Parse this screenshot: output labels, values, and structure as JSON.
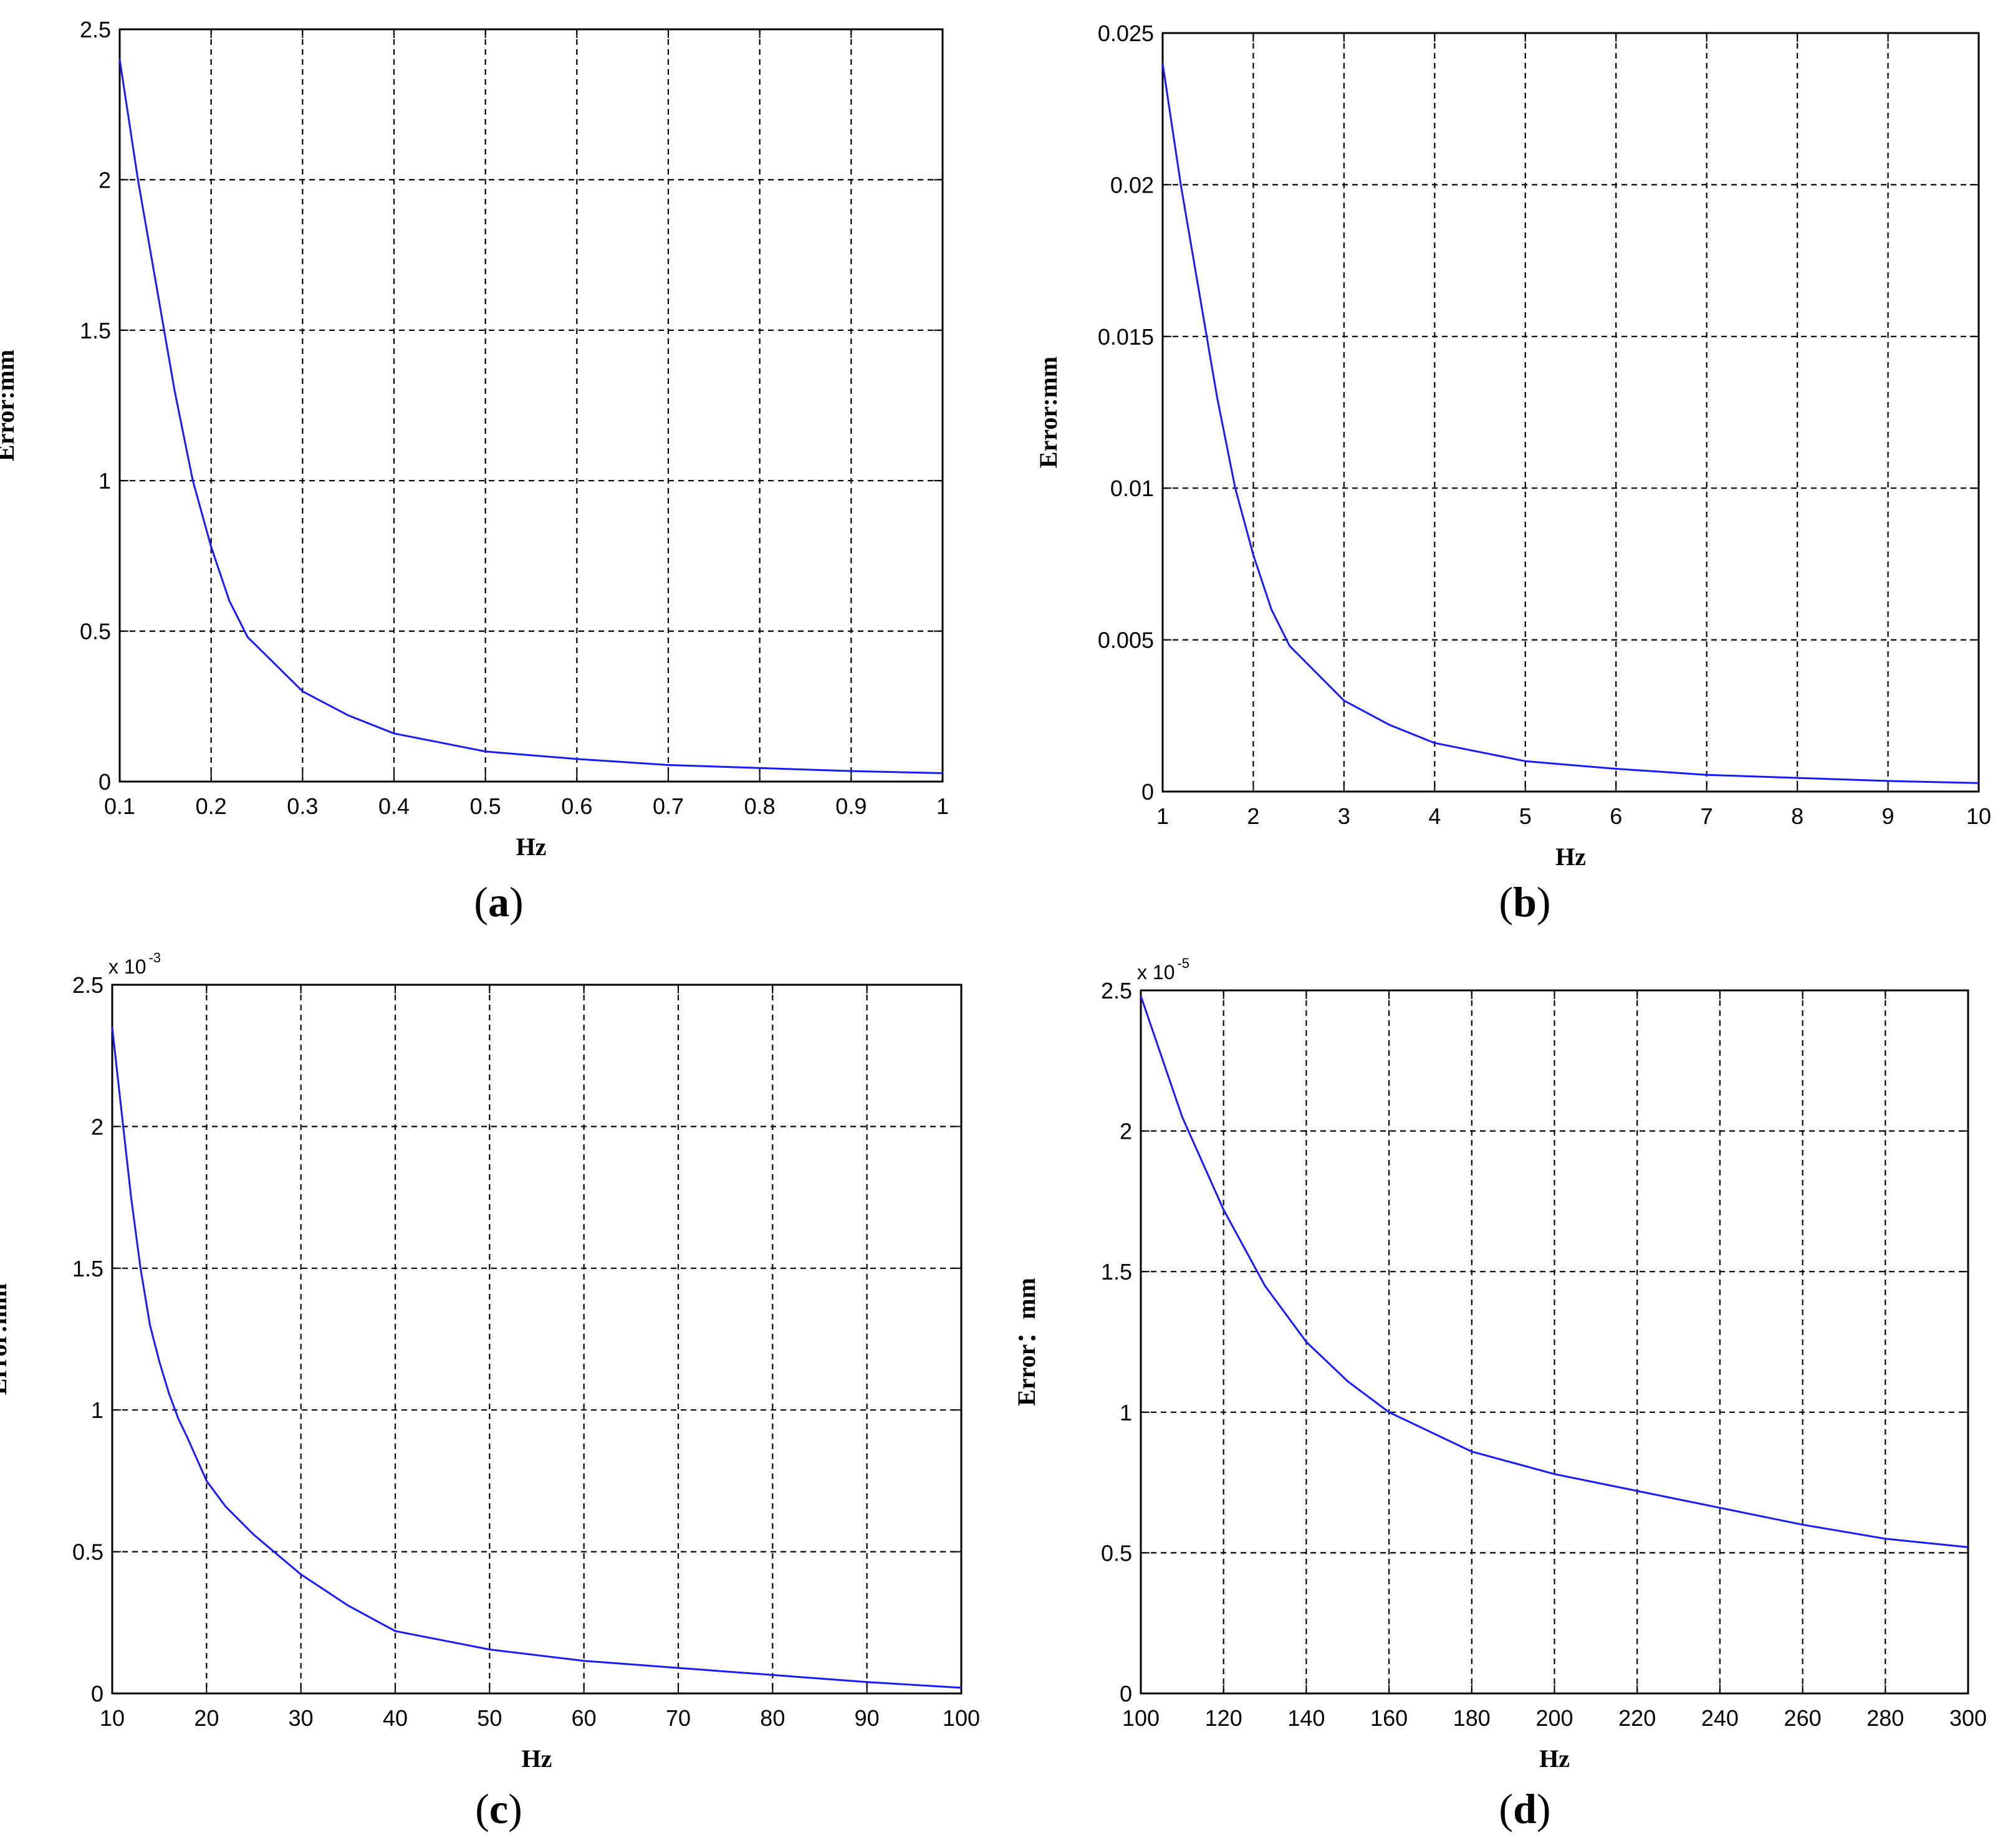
{
  "colors": {
    "curve": "#1a1aff",
    "axes": "#000000",
    "background": "#ffffff"
  },
  "chart_data": [
    {
      "type": "line",
      "panel_label": "a",
      "xlabel": "Hz",
      "ylabel": "Error:mm",
      "xlim": [
        0.1,
        1
      ],
      "ylim": [
        0,
        2.5
      ],
      "y_multiplier": "",
      "y_multiplier_exp": "",
      "xticks": [
        "0.1",
        "0.2",
        "0.3",
        "0.4",
        "0.5",
        "0.6",
        "0.7",
        "0.8",
        "0.9",
        "1"
      ],
      "yticks": [
        "0",
        "0.5",
        "1",
        "1.5",
        "2",
        "2.5"
      ],
      "grid": true,
      "series": [
        {
          "x": [
            0.1,
            0.12,
            0.14,
            0.16,
            0.18,
            0.2,
            0.22,
            0.24,
            0.26,
            0.3,
            0.35,
            0.4,
            0.45,
            0.5,
            0.6,
            0.7,
            0.8,
            0.9,
            1.0
          ],
          "y": [
            2.4,
            2.0,
            1.65,
            1.3,
            1.0,
            0.78,
            0.6,
            0.48,
            0.42,
            0.3,
            0.22,
            0.16,
            0.13,
            0.1,
            0.075,
            0.055,
            0.045,
            0.035,
            0.028
          ]
        }
      ]
    },
    {
      "type": "line",
      "panel_label": "b",
      "xlabel": "Hz",
      "ylabel": "Error:mm",
      "xlim": [
        1,
        10
      ],
      "ylim": [
        0,
        0.025
      ],
      "y_multiplier": "",
      "y_multiplier_exp": "",
      "xticks": [
        "1",
        "2",
        "3",
        "4",
        "5",
        "6",
        "7",
        "8",
        "9",
        "10"
      ],
      "yticks": [
        "0",
        "0.005",
        "0.01",
        "0.015",
        "0.02",
        "0.025"
      ],
      "grid": true,
      "series": [
        {
          "x": [
            1,
            1.2,
            1.4,
            1.6,
            1.8,
            2,
            2.2,
            2.4,
            2.6,
            3,
            3.5,
            4,
            4.5,
            5,
            6,
            7,
            8,
            9,
            10
          ],
          "y": [
            0.024,
            0.02,
            0.0165,
            0.013,
            0.01,
            0.0078,
            0.006,
            0.0048,
            0.0042,
            0.003,
            0.0022,
            0.0016,
            0.0013,
            0.001,
            0.00075,
            0.00055,
            0.00045,
            0.00035,
            0.00028
          ]
        }
      ]
    },
    {
      "type": "line",
      "panel_label": "c",
      "xlabel": "Hz",
      "ylabel": "Error:mm",
      "xlim": [
        10,
        100
      ],
      "ylim": [
        0,
        2.5
      ],
      "y_multiplier": "x 10",
      "y_multiplier_exp": "-3",
      "xticks": [
        "10",
        "20",
        "30",
        "40",
        "50",
        "60",
        "70",
        "80",
        "90",
        "100"
      ],
      "yticks": [
        "0",
        "0.5",
        "1",
        "1.5",
        "2",
        "2.5"
      ],
      "grid": true,
      "series": [
        {
          "x": [
            10,
            11,
            12,
            13,
            14,
            15,
            16,
            17,
            18,
            20,
            22,
            25,
            30,
            35,
            40,
            50,
            60,
            70,
            80,
            90,
            100
          ],
          "y": [
            2.35,
            2.05,
            1.75,
            1.5,
            1.3,
            1.17,
            1.06,
            0.97,
            0.9,
            0.75,
            0.66,
            0.56,
            0.42,
            0.31,
            0.22,
            0.155,
            0.115,
            0.09,
            0.065,
            0.04,
            0.02
          ]
        }
      ]
    },
    {
      "type": "line",
      "panel_label": "d",
      "xlabel": "Hz",
      "ylabel": "Error：mm",
      "xlim": [
        100,
        300
      ],
      "ylim": [
        0,
        2.5
      ],
      "y_multiplier": "x 10",
      "y_multiplier_exp": "-5",
      "xticks": [
        "100",
        "120",
        "140",
        "160",
        "180",
        "200",
        "220",
        "240",
        "260",
        "280",
        "300"
      ],
      "yticks": [
        "0",
        "0.5",
        "1",
        "1.5",
        "2",
        "2.5"
      ],
      "grid": true,
      "series": [
        {
          "x": [
            100,
            110,
            120,
            130,
            140,
            150,
            160,
            170,
            180,
            190,
            200,
            220,
            240,
            260,
            280,
            300
          ],
          "y": [
            2.48,
            2.05,
            1.72,
            1.45,
            1.25,
            1.11,
            1.0,
            0.93,
            0.86,
            0.82,
            0.78,
            0.72,
            0.66,
            0.6,
            0.55,
            0.52
          ]
        }
      ]
    }
  ]
}
